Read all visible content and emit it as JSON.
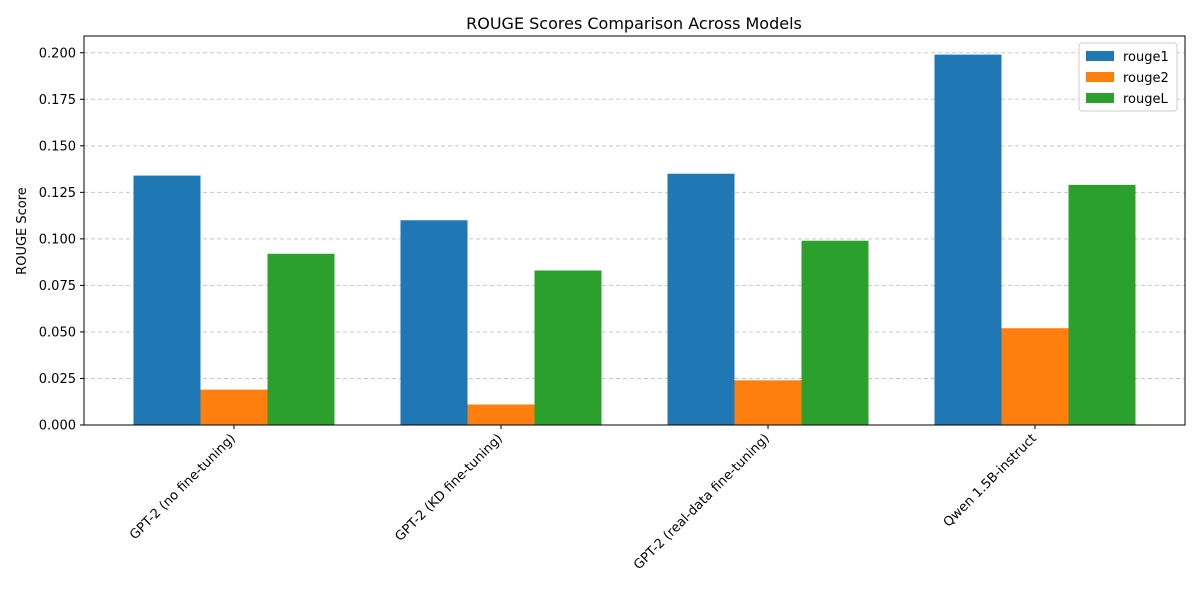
{
  "chart_data": {
    "type": "bar",
    "title": "ROUGE Scores Comparison Across Models",
    "xlabel": "",
    "ylabel": "ROUGE Score",
    "ylim": [
      0,
      0.209
    ],
    "yticks": [
      "0.000",
      "0.025",
      "0.050",
      "0.075",
      "0.100",
      "0.125",
      "0.150",
      "0.175",
      "0.200"
    ],
    "grid": "horizontal-dashed",
    "legend_position": "top-right",
    "categories": [
      "GPT-2 (no fine-tuning)",
      "GPT-2 (KD fine-tuning)",
      "GPT-2 (real-data fine-tuning)",
      "Qwen 1.5B-instruct"
    ],
    "series": [
      {
        "name": "rouge1",
        "color": "#1f77b4",
        "values": [
          0.134,
          0.11,
          0.135,
          0.199
        ]
      },
      {
        "name": "rouge2",
        "color": "#ff7f0e",
        "values": [
          0.019,
          0.011,
          0.024,
          0.052
        ]
      },
      {
        "name": "rougeL",
        "color": "#2ca02c",
        "values": [
          0.092,
          0.083,
          0.099,
          0.129
        ]
      }
    ]
  }
}
